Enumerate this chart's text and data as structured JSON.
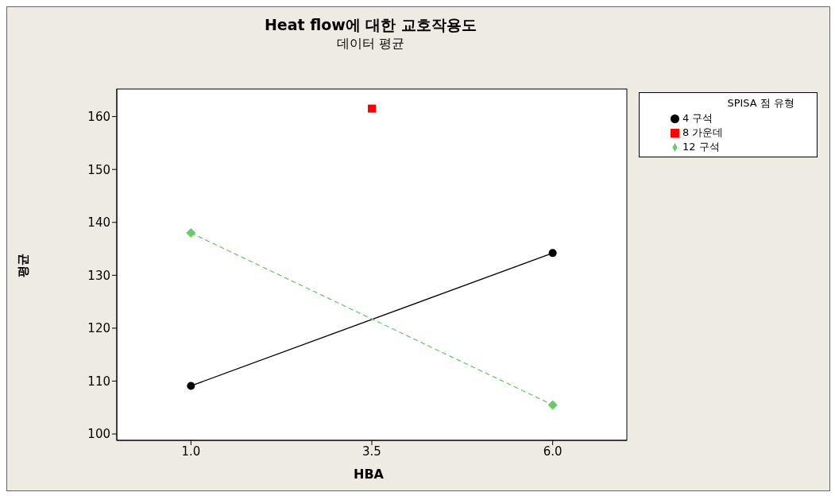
{
  "chart_data": {
    "type": "line",
    "title": "Heat flow에 대한 교호작용도",
    "subtitle": "데이터 평균",
    "xlabel": "HBA",
    "ylabel": "평균",
    "legend_title": "SPISA 점 유형",
    "categories": [
      "1.0",
      "3.5",
      "6.0"
    ],
    "series": [
      {
        "name": "4 구석",
        "color": "#000000",
        "marker": "circle",
        "line_style": "solid",
        "values": [
          109.1,
          null,
          134.2
        ]
      },
      {
        "name": "8 가운데",
        "color": "#ff0000",
        "marker": "square",
        "line_style": "solid",
        "values": [
          null,
          161.5,
          null
        ]
      },
      {
        "name": "12 구석",
        "color": "#66cc66",
        "marker": "diamond",
        "line_style": "dashed",
        "values": [
          138.0,
          null,
          105.5
        ]
      }
    ],
    "ylim": [
      98.8,
      165.2
    ],
    "yticks": [
      100,
      110,
      120,
      130,
      140,
      150,
      160
    ],
    "grid": false,
    "legend": "top right"
  }
}
